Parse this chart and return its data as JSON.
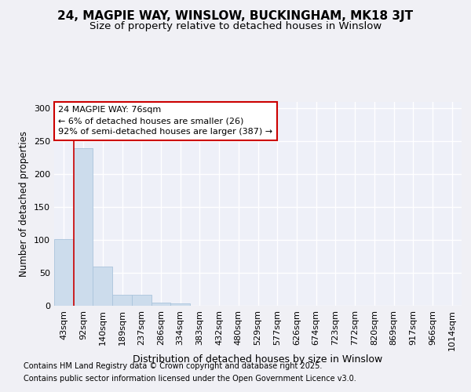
{
  "title": "24, MAGPIE WAY, WINSLOW, BUCKINGHAM, MK18 3JT",
  "subtitle": "Size of property relative to detached houses in Winslow",
  "xlabel": "Distribution of detached houses by size in Winslow",
  "ylabel": "Number of detached properties",
  "footnote1": "Contains HM Land Registry data © Crown copyright and database right 2025.",
  "footnote2": "Contains public sector information licensed under the Open Government Licence v3.0.",
  "categories": [
    "43sqm",
    "92sqm",
    "140sqm",
    "189sqm",
    "237sqm",
    "286sqm",
    "334sqm",
    "383sqm",
    "432sqm",
    "480sqm",
    "529sqm",
    "577sqm",
    "626sqm",
    "674sqm",
    "723sqm",
    "772sqm",
    "820sqm",
    "869sqm",
    "917sqm",
    "966sqm",
    "1014sqm"
  ],
  "values": [
    101,
    240,
    60,
    17,
    17,
    5,
    3,
    0,
    0,
    0,
    0,
    0,
    0,
    0,
    0,
    0,
    0,
    0,
    0,
    0,
    0
  ],
  "bar_color": "#ccdcec",
  "bar_edge_color": "#aac4dc",
  "marker_line_color": "#cc0000",
  "annotation_text": "24 MAGPIE WAY: 76sqm\n← 6% of detached houses are smaller (26)\n92% of semi-detached houses are larger (387) →",
  "annotation_box_edgecolor": "#cc0000",
  "annotation_box_facecolor": "#ffffff",
  "ylim": [
    0,
    310
  ],
  "yticks": [
    0,
    50,
    100,
    150,
    200,
    250,
    300
  ],
  "background_color": "#f0f0f5",
  "axes_background": "#eef0f8",
  "grid_color": "#ffffff",
  "title_fontsize": 11,
  "subtitle_fontsize": 9.5,
  "xlabel_fontsize": 9,
  "ylabel_fontsize": 8.5,
  "tick_fontsize": 8,
  "footnote_fontsize": 7,
  "annotation_fontsize": 8
}
